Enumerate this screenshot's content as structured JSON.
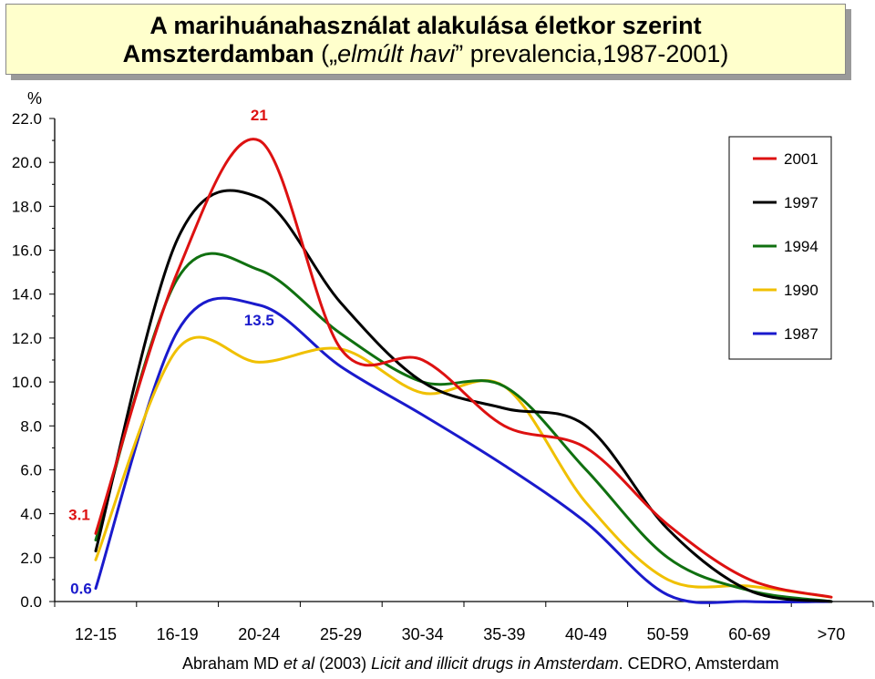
{
  "title": {
    "line1": "A marihuánahasználat alakulása életkor szerint",
    "line2_bold": "Amszterdamban",
    "line2_open": " („",
    "line2_italic": "elmúlt havi",
    "line2_close": "” prevalencia,1987-2001)"
  },
  "citation": {
    "authors": "Abraham MD ",
    "etal": "et al",
    "year": " (2003) ",
    "work": "Licit and illicit drugs in Amsterdam",
    "publisher": ". CEDRO, Amsterdam"
  },
  "chart_data": {
    "type": "line",
    "ylabel": "%",
    "ylim": [
      0,
      22
    ],
    "yticks": [
      "0.0",
      "2.0",
      "4.0",
      "6.0",
      "8.0",
      "10.0",
      "12.0",
      "14.0",
      "16.0",
      "18.0",
      "20.0",
      "22.0"
    ],
    "categories": [
      "12-15",
      "16-19",
      "20-24",
      "25-29",
      "30-34",
      "35-39",
      "40-49",
      "50-59",
      "60-69",
      ">70"
    ],
    "series": [
      {
        "name": "2001",
        "color": "#dd1111",
        "values": [
          3.1,
          15.0,
          21.0,
          11.5,
          11.0,
          8.0,
          7.0,
          3.5,
          1.0,
          0.2
        ]
      },
      {
        "name": "1997",
        "color": "#000000",
        "values": [
          2.3,
          16.5,
          18.4,
          13.6,
          10.0,
          8.8,
          8.0,
          3.3,
          0.5,
          0.0
        ]
      },
      {
        "name": "1994",
        "color": "#107010",
        "values": [
          2.8,
          14.7,
          15.1,
          12.2,
          10.0,
          9.8,
          6.0,
          2.0,
          0.5,
          0.0
        ]
      },
      {
        "name": "1990",
        "color": "#f0c000",
        "values": [
          1.9,
          11.5,
          10.9,
          11.5,
          9.5,
          9.8,
          4.5,
          1.0,
          0.7,
          0.2
        ]
      },
      {
        "name": "1987",
        "color": "#1a1acc",
        "values": [
          0.6,
          12.3,
          13.5,
          10.7,
          8.5,
          6.2,
          3.6,
          0.3,
          0.0,
          0.0
        ]
      }
    ],
    "annotations": [
      {
        "text": "21",
        "color": "#dd1111",
        "series": "2001",
        "index": 2
      },
      {
        "text": "13.5",
        "color": "#1a1acc",
        "series": "1987",
        "index": 2
      },
      {
        "text": "3.1",
        "color": "#dd1111",
        "series": "2001",
        "index": 0
      },
      {
        "text": "0.6",
        "color": "#1a1acc",
        "series": "1987",
        "index": 0
      }
    ],
    "legend_position": "top-right",
    "grid": false
  }
}
